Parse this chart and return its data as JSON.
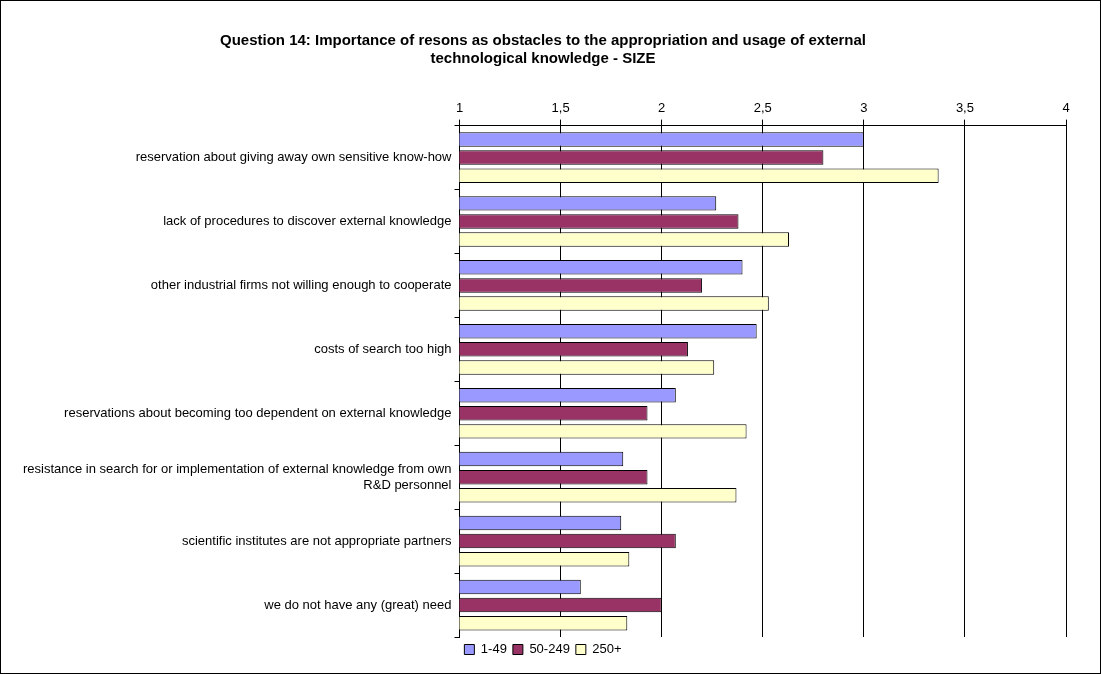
{
  "chart_data": {
    "type": "bar",
    "orientation": "horizontal",
    "title": "Question 14: Importance of resons as obstacles to the appropriation and usage of external technological knowledge - SIZE",
    "categories": [
      "reservation about giving away own sensitive know-how",
      "lack of procedures to discover external knowledge",
      "other industrial firms not willing enough to cooperate",
      "costs of search too high",
      "reservations about becoming too dependent on external knowledge",
      "resistance in search for or implementation of external knowledge from own R&D personnel",
      "scientific institutes are not appropriate partners",
      "we do not have any (great) need"
    ],
    "series": [
      {
        "name": "1-49",
        "color": "#9999ff",
        "values": [
          3.0,
          2.27,
          2.4,
          2.47,
          2.07,
          1.81,
          1.8,
          1.6
        ]
      },
      {
        "name": "50-249",
        "color": "#993366",
        "values": [
          2.8,
          2.38,
          2.2,
          2.13,
          1.93,
          1.93,
          2.07,
          2.0
        ]
      },
      {
        "name": "250+",
        "color": "#ffffcc",
        "values": [
          3.37,
          2.63,
          2.53,
          2.26,
          2.42,
          2.37,
          1.84,
          1.83
        ]
      }
    ],
    "xlim": [
      1,
      4
    ],
    "xticks": [
      1,
      {
        "value": 1.5,
        "label": "1,5"
      },
      2,
      {
        "value": 2.5,
        "label": "2,5"
      },
      3,
      {
        "value": 3.5,
        "label": "3,5"
      },
      4
    ],
    "grid": "x",
    "legend": "bottom"
  }
}
